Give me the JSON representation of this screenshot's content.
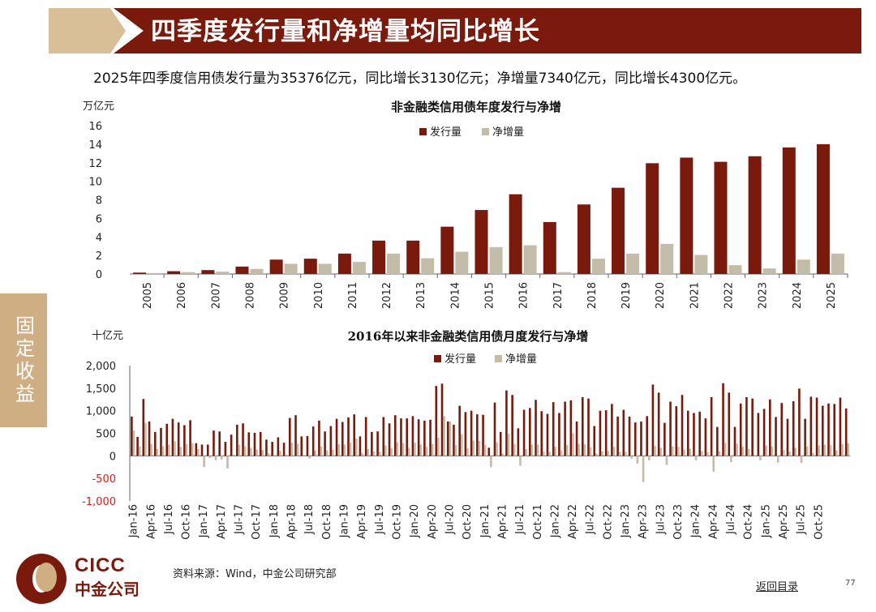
{
  "header": {
    "title": "四季度发行量和净增量均同比增长"
  },
  "subtitle": "2025年四季度信用债发行量为35376亿元，同比增长3130亿元；净增量7340亿元，同比增长4300亿元。",
  "side_tab": "固定收益",
  "colors": {
    "issuance": "#7a1a0c",
    "net": "#c2bca8",
    "negative_tick": "#d41e1e",
    "header_red": "#7a1a0c",
    "header_gold": "#d9bf97"
  },
  "chart_data": [
    {
      "type": "bar",
      "title": "非金融类信用债年度发行与净增",
      "ylabel": "万亿元",
      "ylim": [
        0,
        16
      ],
      "yticks": [
        0,
        2,
        4,
        6,
        8,
        10,
        12,
        14,
        16
      ],
      "ytick_labels": [
        "0",
        "2",
        "4",
        "6",
        "8",
        "10",
        "12",
        "14",
        "16"
      ],
      "categories": [
        "2005",
        "2006",
        "2007",
        "2008",
        "2009",
        "2010",
        "2011",
        "2012",
        "2013",
        "2014",
        "2015",
        "2016",
        "2017",
        "2018",
        "2019",
        "2020",
        "2021",
        "2022",
        "2023",
        "2024",
        "2025"
      ],
      "series": [
        {
          "name": "发行量",
          "values": [
            0.15,
            0.3,
            0.42,
            0.8,
            1.55,
            1.65,
            2.2,
            3.6,
            3.6,
            5.1,
            6.9,
            8.6,
            5.6,
            7.5,
            9.3,
            11.95,
            12.55,
            12.1,
            12.7,
            13.65,
            14.0
          ]
        },
        {
          "name": "净增量",
          "values": [
            0.1,
            0.2,
            0.25,
            0.55,
            1.1,
            1.1,
            1.3,
            2.2,
            1.7,
            2.4,
            2.9,
            3.1,
            0.2,
            1.65,
            2.2,
            3.25,
            2.05,
            0.95,
            0.6,
            1.55,
            2.2
          ]
        }
      ]
    },
    {
      "type": "bar",
      "title": "2016年以来非金融类信用债月度发行与净增",
      "ylabel": "十亿元",
      "ylim": [
        -1000,
        2000
      ],
      "yticks": [
        -1000,
        -500,
        0,
        500,
        1000,
        1500,
        2000
      ],
      "ytick_labels": [
        "-1,000",
        "-500",
        "0",
        "500",
        "1,000",
        "1,500",
        "2,000"
      ],
      "x_tick_labels": [
        "Jan-16",
        "Apr-16",
        "Jul-16",
        "Oct-16",
        "Jan-17",
        "Apr-17",
        "Jul-17",
        "Oct-17",
        "Jan-18",
        "Apr-18",
        "Jul-18",
        "Oct-18",
        "Jan-19",
        "Apr-19",
        "Jul-19",
        "Oct-19",
        "Jan-20",
        "Apr-20",
        "Jul-20",
        "Oct-20",
        "Jan-21",
        "Apr-21",
        "Jul-21",
        "Oct-21",
        "Jan-22",
        "Apr-22",
        "Jul-22",
        "Oct-22",
        "Jan-23",
        "Apr-23",
        "Jul-23",
        "Oct-23",
        "Jan-24",
        "Apr-24",
        "Jul-24",
        "Oct-24",
        "Jan-25",
        "Apr-25",
        "Jul-25",
        "Oct-25"
      ],
      "series": [
        {
          "name": "发行量",
          "values": [
            870,
            420,
            1260,
            760,
            530,
            620,
            710,
            820,
            740,
            680,
            790,
            280,
            250,
            250,
            560,
            540,
            310,
            470,
            690,
            720,
            520,
            510,
            530,
            360,
            310,
            410,
            290,
            840,
            900,
            430,
            440,
            650,
            780,
            540,
            660,
            820,
            750,
            850,
            920,
            430,
            860,
            530,
            540,
            860,
            720,
            900,
            830,
            830,
            880,
            810,
            780,
            800,
            1550,
            1600,
            760,
            690,
            1110,
            970,
            1000,
            920,
            910,
            180,
            1180,
            530,
            1450,
            1350,
            610,
            1020,
            1060,
            1240,
            990,
            930,
            1190,
            950,
            1200,
            1230,
            760,
            1300,
            1270,
            660,
            1000,
            1010,
            1150,
            870,
            1020,
            870,
            740,
            760,
            880,
            1580,
            1400,
            730,
            1200,
            1100,
            1350,
            1000,
            950,
            980,
            830,
            1300,
            640,
            1610,
            1400,
            640,
            1160,
            1300,
            1270,
            950,
            1040,
            1250,
            860,
            1170,
            820,
            1210,
            1490,
            820,
            1310,
            1290,
            1110,
            1160,
            1150,
            1290,
            1050
          ]
        },
        {
          "name": "净增量",
          "values": [
            560,
            210,
            730,
            260,
            150,
            210,
            250,
            320,
            200,
            260,
            280,
            150,
            -250,
            -50,
            -100,
            -80,
            -280,
            30,
            250,
            210,
            180,
            140,
            130,
            60,
            20,
            110,
            30,
            290,
            270,
            20,
            -60,
            120,
            210,
            120,
            140,
            260,
            250,
            300,
            380,
            60,
            150,
            100,
            90,
            230,
            170,
            300,
            280,
            180,
            290,
            250,
            200,
            260,
            400,
            880,
            760,
            240,
            480,
            170,
            340,
            330,
            240,
            -250,
            300,
            50,
            490,
            260,
            -220,
            150,
            250,
            250,
            100,
            90,
            200,
            120,
            240,
            500,
            270,
            260,
            190,
            50,
            100,
            110,
            200,
            90,
            90,
            -60,
            -170,
            -580,
            -100,
            220,
            180,
            -200,
            210,
            200,
            140,
            160,
            -100,
            110,
            80,
            -350,
            100,
            290,
            -140,
            270,
            200,
            150,
            20,
            -100,
            230,
            210,
            -150,
            130,
            100,
            180,
            -160,
            210,
            60,
            230,
            250,
            240,
            120,
            260,
            280
          ]
        }
      ]
    }
  ],
  "footer": {
    "logo_en": "CICC",
    "logo_cn": "中金公司",
    "source": "资料来源：Wind，中金公司研究部",
    "back_link": "返回目录",
    "page_number": "77"
  }
}
